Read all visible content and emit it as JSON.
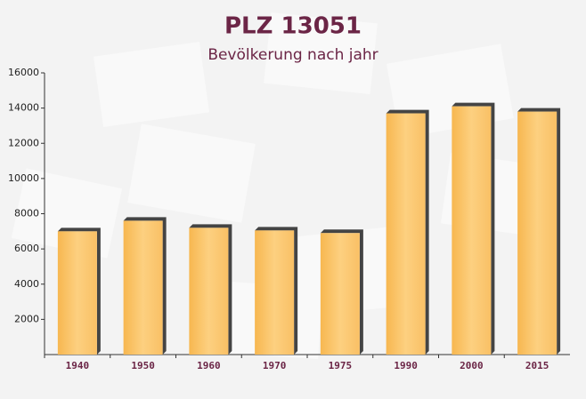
{
  "chart_data": {
    "type": "bar",
    "title": "PLZ 13051",
    "subtitle": "Bevölkerung nach jahr",
    "categories": [
      "1940",
      "1950",
      "1960",
      "1970",
      "1975",
      "1990",
      "2000",
      "2015"
    ],
    "values": [
      7000,
      7600,
      7200,
      7050,
      6900,
      13700,
      14100,
      13800
    ],
    "color": "#fbc76a",
    "ylim": [
      0,
      16000
    ],
    "yticks": [
      2000,
      4000,
      6000,
      8000,
      10000,
      12000,
      14000,
      16000
    ]
  }
}
